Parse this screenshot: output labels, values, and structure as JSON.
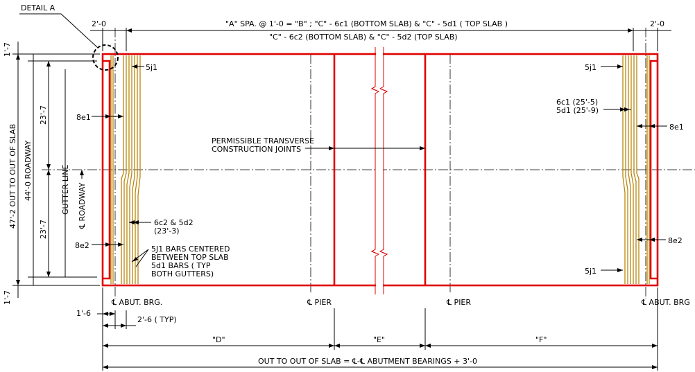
{
  "colors": {
    "slab_outline": "#e00000",
    "reinforcing_bars": "#b8860b",
    "linework": "#000000"
  },
  "labels": {
    "detail_a": "DETAIL A",
    "two_ft_left": "2'-0",
    "two_ft_right": "2'-0",
    "top_note_1": "\"A\" SPA. @ 1'-0 = \"B\" ; \"C\" - 6c1 (BOTTOM SLAB) &  \"C\" - 5d1 ( TOP SLAB )",
    "top_note_2": "\"C\" - 6c2 (BOTTOM SLAB) &  \"C\" - 5d2 (TOP SLAB)",
    "one_seven_top": "1'-7",
    "one_seven_bottom": "1'-7",
    "out_to_out": "47'-2 OUT TO OUT OF SLAB",
    "roadway_width": "44'-0 ROADWAY",
    "half_top": "23'-7",
    "half_bottom": "23'-7",
    "gutter_line": "GUTTER LINE",
    "cl_roadway": "℄ ROADWAY",
    "bar_5j1_tl": "5j1",
    "bar_5j1_tr": "5j1",
    "bar_5j1_br": "5j1",
    "bar_8e1_left": "8e1",
    "bar_8e1_right": "8e1",
    "bar_8e2_left": "8e2",
    "bar_8e2_right": "8e2",
    "bar_6c1_len": "6c1 (25'-5)",
    "bar_5d1_len": "5d1 (25'-9)",
    "permissible_1": "PERMISSIBLE TRANSVERSE",
    "permissible_2": "CONSTRUCTION JOINTS",
    "bars_6c2_5d2_1": "6c2 & 5d2",
    "bars_6c2_5d2_2": "(23'-3)",
    "note_5j1_1": "5J1 BARS CENTERED",
    "note_5j1_2": "BETWEEN TOP SLAB",
    "note_5j1_3": "5d1 BARS ( TYP",
    "note_5j1_4": "BOTH GUTTERS)",
    "cl_abut_brg_left": "℄  ABUT. BRG.",
    "cl_pier_left": "℄  PIER",
    "cl_pier_right": "℄  PIER",
    "cl_abut_brg_right": "℄  ABUT. BRG",
    "one_six": "1'-6",
    "two_six_typ": "2'-6 ( TYP)",
    "span_d": "\"D\"",
    "span_e": "\"E\"",
    "span_f": "\"F\"",
    "bottom_note": "OUT TO OUT OF SLAB = ℄-℄ ABUTMENT BEARINGS + 3'-0"
  }
}
